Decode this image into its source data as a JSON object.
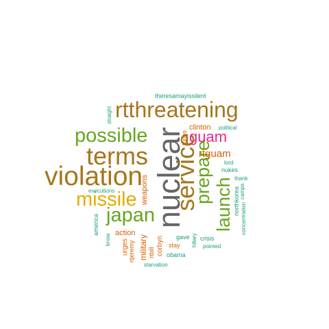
{
  "palette": {
    "brown": "#a6761d",
    "green": "#66a61e",
    "gold": "#e6ab02",
    "gray": "#666666",
    "pink": "#e7298a",
    "orange": "#d95f02",
    "teal": "#1b9e77"
  },
  "words": [
    {
      "id": "rtthreatening",
      "text": "rtthreatening",
      "color": "#a6761d",
      "rotated": false
    },
    {
      "id": "possible",
      "text": "possible",
      "color": "#66a61e",
      "rotated": false
    },
    {
      "id": "terms",
      "text": "terms",
      "color": "#a6761d",
      "rotated": false
    },
    {
      "id": "violation",
      "text": "violation",
      "color": "#a6761d",
      "rotated": false
    },
    {
      "id": "missile",
      "text": "missile",
      "color": "#e6ab02",
      "rotated": false
    },
    {
      "id": "japan",
      "text": "japan",
      "color": "#66a61e",
      "rotated": false
    },
    {
      "id": "nuclear",
      "text": "nuclear",
      "color": "#666666",
      "rotated": true
    },
    {
      "id": "service",
      "text": "service",
      "color": "#a6761d",
      "rotated": true
    },
    {
      "id": "prepare",
      "text": "prepare",
      "color": "#66a61e",
      "rotated": true
    },
    {
      "id": "launch",
      "text": "launch",
      "color": "#66a61e",
      "rotated": true
    },
    {
      "id": "guam",
      "text": "guam",
      "color": "#e7298a",
      "rotated": false
    },
    {
      "id": "rtguam",
      "text": "rtguam",
      "color": "#d95f02",
      "rotated": false
    },
    {
      "id": "clinton",
      "text": "clinton",
      "color": "#d95f02",
      "rotated": false
    },
    {
      "id": "political",
      "text": "political",
      "color": "#1b9e77",
      "rotated": false
    },
    {
      "id": "theresamayissilent",
      "text": "theresamayissilent",
      "color": "#1b9e77",
      "rotated": false
    },
    {
      "id": "straight",
      "text": "straight",
      "color": "#1b9e77",
      "rotated": true
    },
    {
      "id": "tories",
      "text": "tories",
      "color": "#d95f02",
      "rotated": true
    },
    {
      "id": "lord",
      "text": "lord",
      "color": "#1b9e77",
      "rotated": false
    },
    {
      "id": "nukes",
      "text": "nukes",
      "color": "#1b9e77",
      "rotated": false
    },
    {
      "id": "thank",
      "text": "thank",
      "color": "#1b9e77",
      "rotated": false
    },
    {
      "id": "camps",
      "text": "camps",
      "color": "#1b9e77",
      "rotated": true
    },
    {
      "id": "northkorea",
      "text": "northkorea",
      "color": "#1b9e77",
      "rotated": true
    },
    {
      "id": "concentration",
      "text": "concentration",
      "color": "#1b9e77",
      "rotated": true
    },
    {
      "id": "executions",
      "text": "executions",
      "color": "#1b9e77",
      "rotated": false
    },
    {
      "id": "weapons",
      "text": "weapons",
      "color": "#d95f02",
      "rotated": true
    },
    {
      "id": "america",
      "text": "america",
      "color": "#1b9e77",
      "rotated": true
    },
    {
      "id": "know",
      "text": "know",
      "color": "#1b9e77",
      "rotated": true
    },
    {
      "id": "action",
      "text": "action",
      "color": "#d95f02",
      "rotated": false
    },
    {
      "id": "urges",
      "text": "urges",
      "color": "#d95f02",
      "rotated": true
    },
    {
      "id": "rtjeremy",
      "text": "rtjeremy",
      "color": "#d95f02",
      "rotated": true
    },
    {
      "id": "military",
      "text": "military",
      "color": "#d95f02",
      "rotated": true
    },
    {
      "id": "rtbill",
      "text": "rtbill",
      "color": "#d95f02",
      "rotated": true
    },
    {
      "id": "corbyn",
      "text": "corbyn",
      "color": "#d95f02",
      "rotated": true
    },
    {
      "id": "gave",
      "text": "gave",
      "color": "#1b9e77",
      "rotated": false
    },
    {
      "id": "stay",
      "text": "stay",
      "color": "#d95f02",
      "rotated": false
    },
    {
      "id": "hillary",
      "text": "hillary",
      "color": "#1b9e77",
      "rotated": true
    },
    {
      "id": "crisis",
      "text": "crisis",
      "color": "#1b9e77",
      "rotated": false
    },
    {
      "id": "pointed",
      "text": "pointed",
      "color": "#1b9e77",
      "rotated": false
    },
    {
      "id": "obama",
      "text": "obama",
      "color": "#1b9e77",
      "rotated": false
    },
    {
      "id": "starvation",
      "text": "starvation",
      "color": "#1b9e77",
      "rotated": false
    }
  ]
}
